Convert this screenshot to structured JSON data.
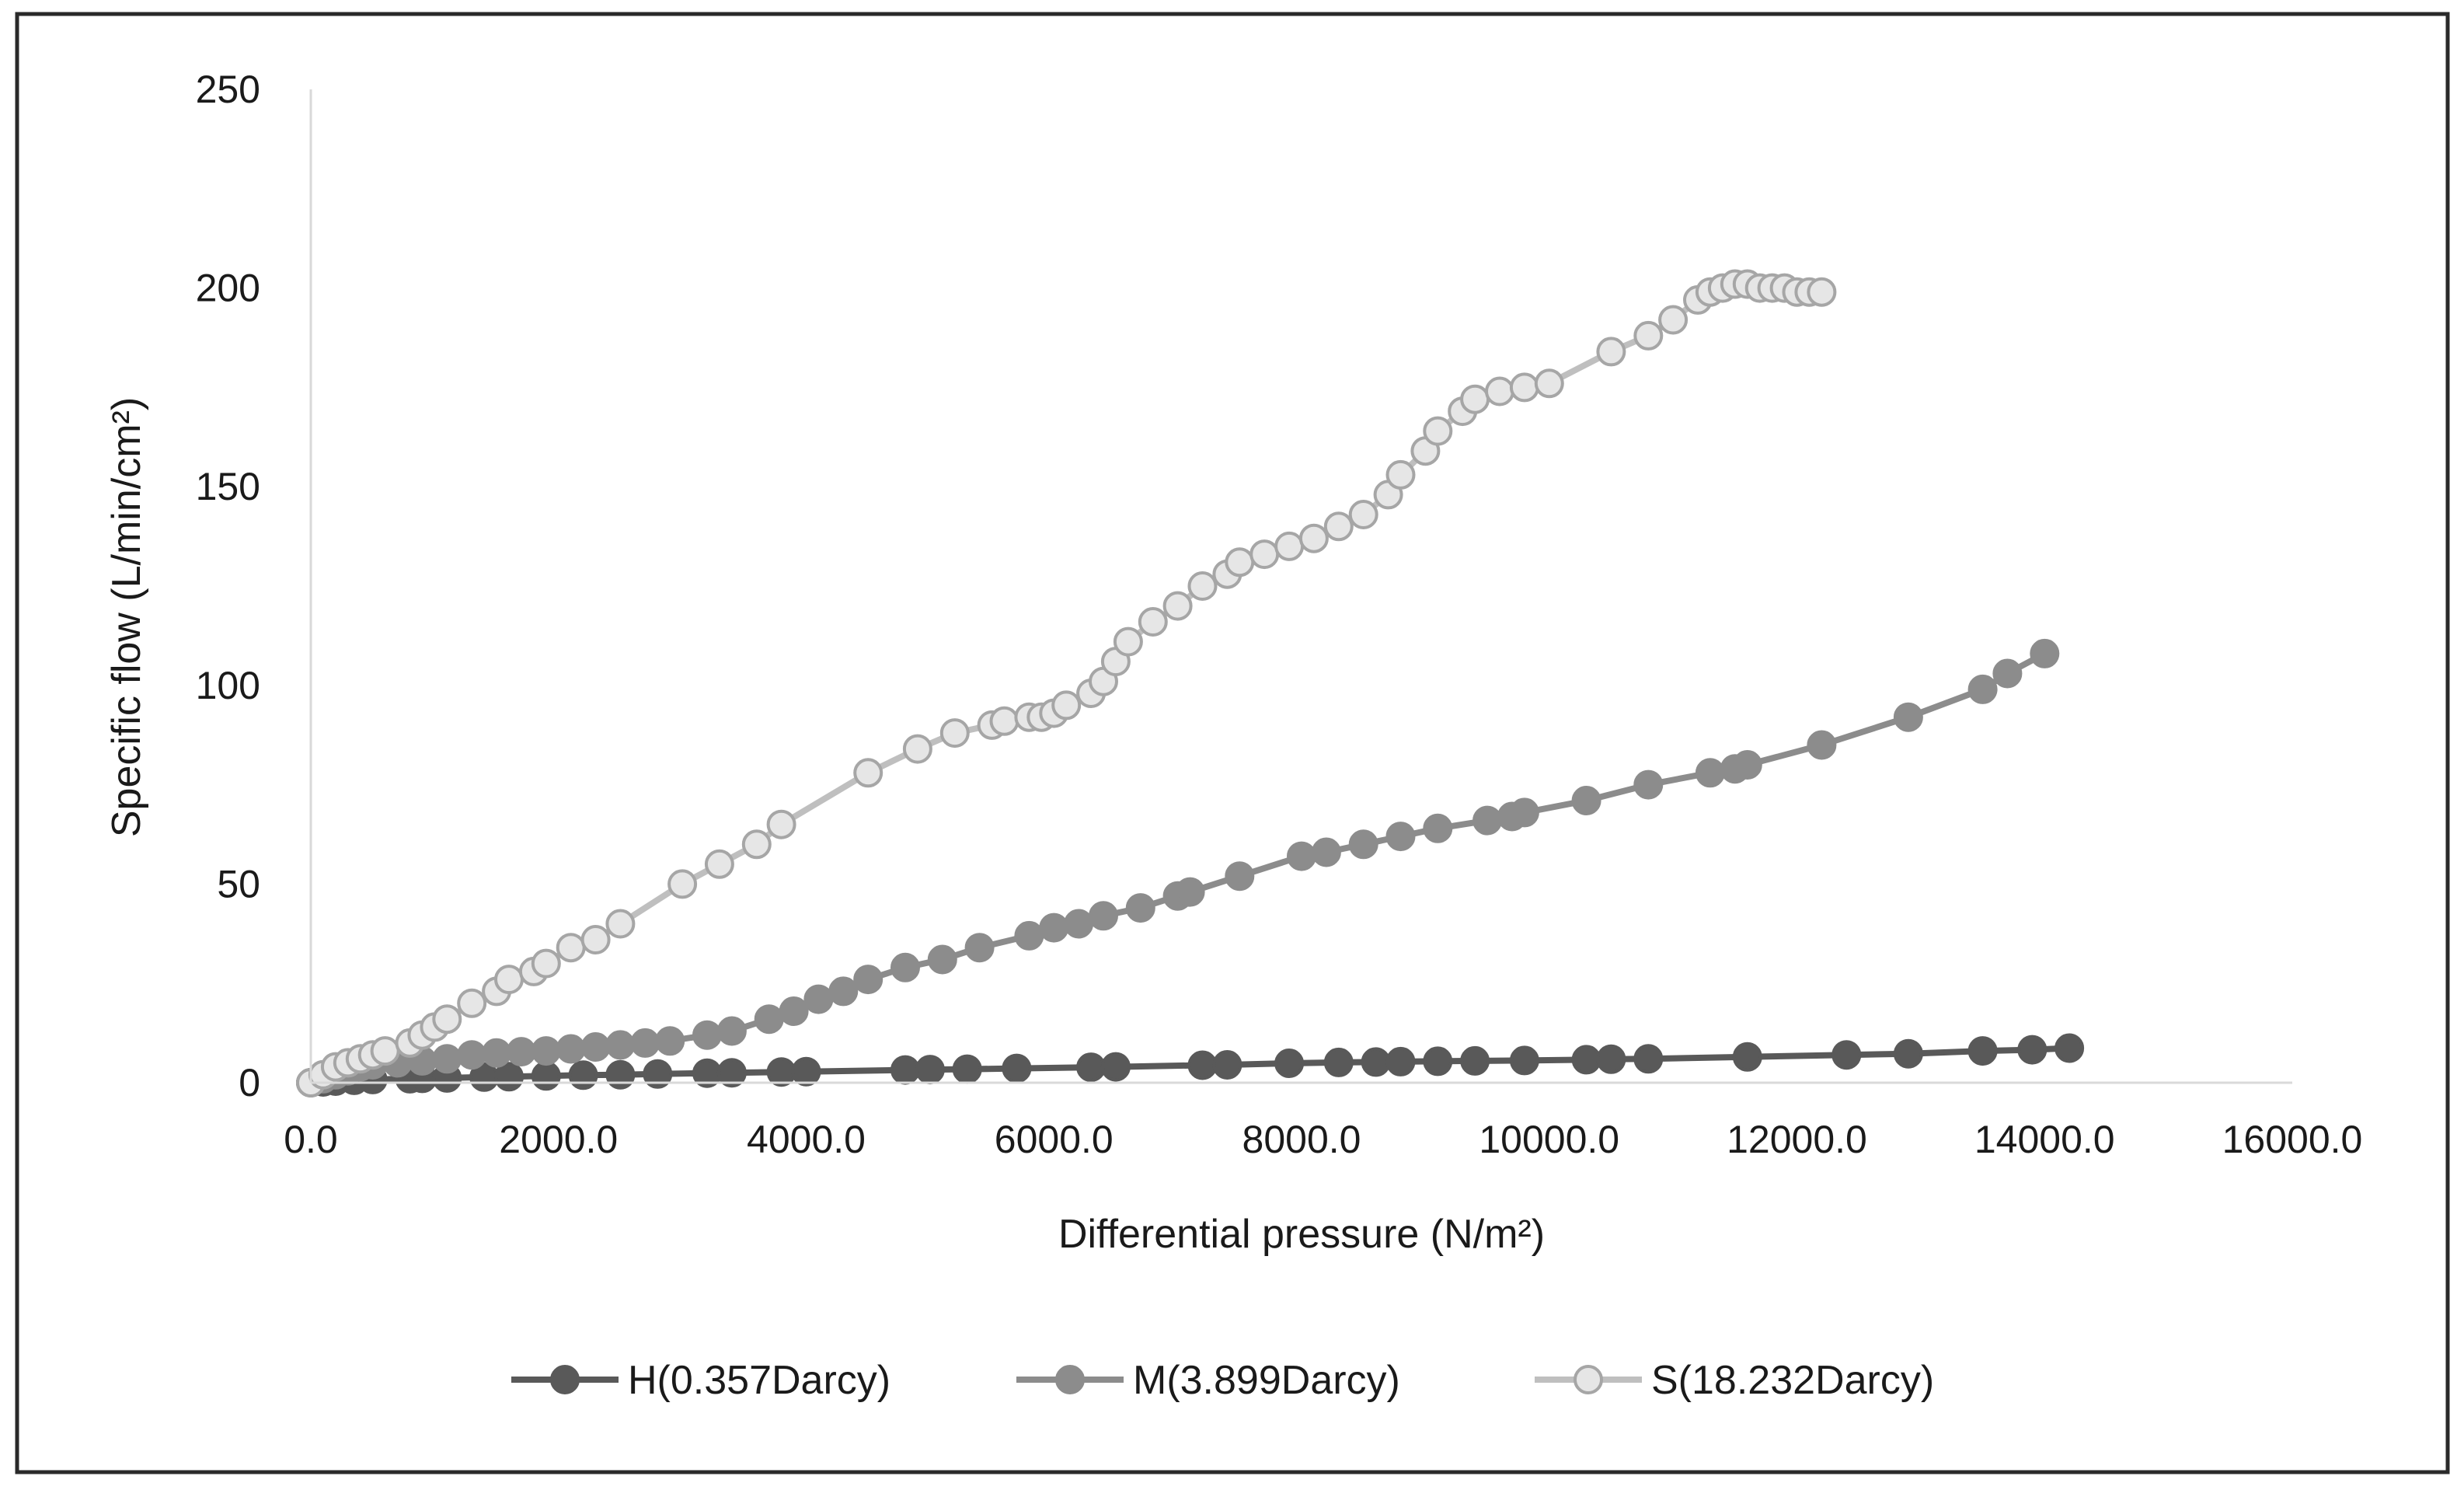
{
  "chart_data": {
    "type": "scatter",
    "title": "",
    "xlabel": "Differential pressure (N/m²)",
    "ylabel": "Specific flow  (L/min/cm²)",
    "xlim": [
      0,
      16000
    ],
    "ylim": [
      0,
      250
    ],
    "x_ticks": [
      "0.0",
      "2000.0",
      "4000.0",
      "6000.0",
      "8000.0",
      "10000.0",
      "12000.0",
      "14000.0",
      "16000.0"
    ],
    "y_ticks": [
      "0",
      "50",
      "100",
      "150",
      "200",
      "250"
    ],
    "grid": false,
    "legend_position": "bottom",
    "series": [
      {
        "name": "H(0.357Darcy)",
        "line_color": "#595959",
        "marker_fill": "#595959",
        "marker_stroke": "#595959",
        "points": [
          [
            0,
            0
          ],
          [
            100,
            0.2
          ],
          [
            200,
            0.4
          ],
          [
            350,
            0.6
          ],
          [
            500,
            0.8
          ],
          [
            800,
            1.0
          ],
          [
            900,
            1.1
          ],
          [
            1100,
            1.2
          ],
          [
            1400,
            1.4
          ],
          [
            1600,
            1.5
          ],
          [
            1900,
            1.7
          ],
          [
            2200,
            1.9
          ],
          [
            2500,
            2.0
          ],
          [
            2800,
            2.2
          ],
          [
            3200,
            2.4
          ],
          [
            3400,
            2.5
          ],
          [
            3800,
            2.7
          ],
          [
            4000,
            2.8
          ],
          [
            4800,
            3.2
          ],
          [
            5000,
            3.3
          ],
          [
            5300,
            3.4
          ],
          [
            5700,
            3.6
          ],
          [
            6300,
            3.9
          ],
          [
            6500,
            4.0
          ],
          [
            7200,
            4.4
          ],
          [
            7400,
            4.5
          ],
          [
            7900,
            4.9
          ],
          [
            8300,
            5.1
          ],
          [
            8600,
            5.2
          ],
          [
            8800,
            5.3
          ],
          [
            9100,
            5.4
          ],
          [
            9400,
            5.5
          ],
          [
            9800,
            5.6
          ],
          [
            10300,
            5.8
          ],
          [
            10500,
            5.9
          ],
          [
            10800,
            6.0
          ],
          [
            11600,
            6.5
          ],
          [
            12400,
            7.0
          ],
          [
            12900,
            7.3
          ],
          [
            13500,
            8.0
          ],
          [
            13900,
            8.3
          ],
          [
            14200,
            8.7
          ]
        ]
      },
      {
        "name": "M(3.899Darcy)",
        "line_color": "#8c8c8c",
        "marker_fill": "#8c8c8c",
        "marker_stroke": "#8c8c8c",
        "points": [
          [
            0,
            0
          ],
          [
            100,
            1
          ],
          [
            200,
            2
          ],
          [
            300,
            3
          ],
          [
            400,
            4
          ],
          [
            500,
            4.5
          ],
          [
            700,
            5
          ],
          [
            900,
            5.5
          ],
          [
            1100,
            6
          ],
          [
            1300,
            7
          ],
          [
            1500,
            7.5
          ],
          [
            1700,
            7.8
          ],
          [
            1900,
            8
          ],
          [
            2100,
            8.5
          ],
          [
            2300,
            9
          ],
          [
            2500,
            9.5
          ],
          [
            2700,
            10
          ],
          [
            2900,
            10.5
          ],
          [
            3200,
            12
          ],
          [
            3400,
            13
          ],
          [
            3700,
            16
          ],
          [
            3900,
            18
          ],
          [
            4100,
            21
          ],
          [
            4300,
            23
          ],
          [
            4500,
            26
          ],
          [
            4800,
            29
          ],
          [
            5100,
            31
          ],
          [
            5400,
            34
          ],
          [
            5800,
            37
          ],
          [
            6000,
            39
          ],
          [
            6200,
            40
          ],
          [
            6400,
            42
          ],
          [
            6700,
            44
          ],
          [
            7000,
            47
          ],
          [
            7100,
            48
          ],
          [
            7500,
            52
          ],
          [
            8000,
            57
          ],
          [
            8200,
            58
          ],
          [
            8500,
            60
          ],
          [
            8800,
            62
          ],
          [
            9100,
            64
          ],
          [
            9500,
            66
          ],
          [
            9700,
            67
          ],
          [
            9800,
            68
          ],
          [
            10300,
            71
          ],
          [
            10800,
            75
          ],
          [
            11300,
            78
          ],
          [
            11500,
            79
          ],
          [
            11600,
            80
          ],
          [
            12200,
            85
          ],
          [
            12900,
            92
          ],
          [
            13500,
            99
          ],
          [
            13700,
            103
          ],
          [
            14000,
            108
          ]
        ]
      },
      {
        "name": "S(18.232Darcy)",
        "line_color": "#bfbfbf",
        "marker_fill": "#e6e6e6",
        "marker_stroke": "#a6a6a6",
        "points": [
          [
            0,
            0
          ],
          [
            100,
            2
          ],
          [
            200,
            4
          ],
          [
            300,
            5
          ],
          [
            400,
            6
          ],
          [
            500,
            7
          ],
          [
            600,
            8
          ],
          [
            800,
            10
          ],
          [
            900,
            12
          ],
          [
            1000,
            14
          ],
          [
            1100,
            16
          ],
          [
            1300,
            20
          ],
          [
            1500,
            23
          ],
          [
            1600,
            26
          ],
          [
            1800,
            28
          ],
          [
            1900,
            30
          ],
          [
            2100,
            34
          ],
          [
            2300,
            36
          ],
          [
            2500,
            40
          ],
          [
            3000,
            50
          ],
          [
            3300,
            55
          ],
          [
            3600,
            60
          ],
          [
            3800,
            65
          ],
          [
            4500,
            78
          ],
          [
            4900,
            84
          ],
          [
            5200,
            88
          ],
          [
            5500,
            90
          ],
          [
            5600,
            91
          ],
          [
            5800,
            92
          ],
          [
            5900,
            92
          ],
          [
            6000,
            93
          ],
          [
            6100,
            95
          ],
          [
            6300,
            98
          ],
          [
            6400,
            101
          ],
          [
            6500,
            106
          ],
          [
            6600,
            111
          ],
          [
            6800,
            116
          ],
          [
            7000,
            120
          ],
          [
            7200,
            125
          ],
          [
            7400,
            128
          ],
          [
            7500,
            131
          ],
          [
            7700,
            133
          ],
          [
            7900,
            135
          ],
          [
            8100,
            137
          ],
          [
            8300,
            140
          ],
          [
            8500,
            143
          ],
          [
            8700,
            148
          ],
          [
            8800,
            153
          ],
          [
            9000,
            159
          ],
          [
            9100,
            164
          ],
          [
            9300,
            169
          ],
          [
            9400,
            172
          ],
          [
            9600,
            174
          ],
          [
            9800,
            175
          ],
          [
            10000,
            176
          ],
          [
            10500,
            184
          ],
          [
            10800,
            188
          ],
          [
            11000,
            192
          ],
          [
            11200,
            197
          ],
          [
            11300,
            199
          ],
          [
            11400,
            200
          ],
          [
            11500,
            201
          ],
          [
            11600,
            201
          ],
          [
            11700,
            200
          ],
          [
            11800,
            200
          ],
          [
            11900,
            200
          ],
          [
            12000,
            199
          ],
          [
            12100,
            199
          ],
          [
            12200,
            199
          ]
        ]
      }
    ]
  }
}
